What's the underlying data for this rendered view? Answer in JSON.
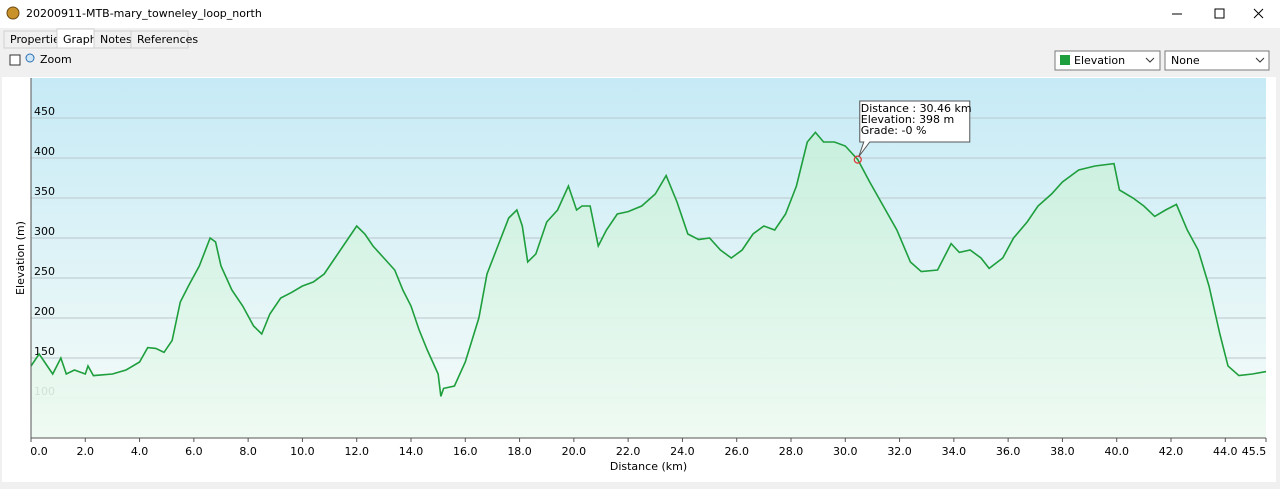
{
  "window": {
    "title": "20200911-MTB-mary_towneley_loop_north"
  },
  "tabs": [
    "Properties",
    "Graph",
    "Notes",
    "References"
  ],
  "toolbar": {
    "zoom": "Zoom",
    "second_select": "None"
  },
  "chart_data": {
    "type": "line",
    "x_label": "Distance  (km)",
    "y_label": "Elevation (m)",
    "x": [
      0,
      0.3,
      0.5,
      0.8,
      1.1,
      1.3,
      1.6,
      2.0,
      2.1,
      2.3,
      3.0,
      3.5,
      4.0,
      4.3,
      4.6,
      4.9,
      5.2,
      5.5,
      5.8,
      6.2,
      6.6,
      6.8,
      7.0,
      7.4,
      7.8,
      8.2,
      8.5,
      8.8,
      9.2,
      9.6,
      10.0,
      10.4,
      10.8,
      11.2,
      11.6,
      12.0,
      12.3,
      12.6,
      13.0,
      13.4,
      13.7,
      14.0,
      14.3,
      14.6,
      15.0,
      15.1,
      15.2,
      15.6,
      16.0,
      16.5,
      16.8,
      17.2,
      17.6,
      17.9,
      18.1,
      18.3,
      18.6,
      19.0,
      19.4,
      19.8,
      20.1,
      20.3,
      20.6,
      20.9,
      21.2,
      21.6,
      22.0,
      22.5,
      23.0,
      23.4,
      23.8,
      24.2,
      24.6,
      25.0,
      25.4,
      25.8,
      26.2,
      26.6,
      27.0,
      27.4,
      27.8,
      28.2,
      28.6,
      28.9,
      29.2,
      29.6,
      30.0,
      30.46,
      30.9,
      31.4,
      31.9,
      32.4,
      32.8,
      33.4,
      33.9,
      34.2,
      34.6,
      35.0,
      35.3,
      35.8,
      36.2,
      36.7,
      37.1,
      37.6,
      38.0,
      38.6,
      39.2,
      39.9,
      40.1,
      40.6,
      41.0,
      41.4,
      41.8,
      42.2,
      42.6,
      43.0,
      43.4,
      43.8,
      44.1,
      44.5,
      45.0,
      45.5
    ],
    "series": [
      {
        "name": "Elevation",
        "color": "#1e9e3c",
        "values": [
          140,
          155,
          145,
          130,
          150,
          130,
          135,
          130,
          140,
          128,
          130,
          135,
          145,
          163,
          162,
          157,
          172,
          220,
          240,
          265,
          300,
          295,
          265,
          235,
          215,
          190,
          180,
          205,
          225,
          232,
          240,
          245,
          255,
          275,
          295,
          315,
          305,
          290,
          275,
          260,
          235,
          215,
          185,
          160,
          130,
          102,
          112,
          115,
          145,
          200,
          255,
          290,
          325,
          335,
          315,
          270,
          280,
          320,
          335,
          365,
          335,
          340,
          340,
          290,
          310,
          330,
          333,
          340,
          355,
          378,
          345,
          305,
          298,
          300,
          285,
          275,
          285,
          305,
          315,
          310,
          330,
          365,
          420,
          432,
          420,
          420,
          415,
          398,
          370,
          340,
          310,
          270,
          258,
          260,
          293,
          282,
          285,
          275,
          262,
          275,
          300,
          320,
          340,
          355,
          370,
          385,
          390,
          393,
          360,
          350,
          340,
          327,
          335,
          342,
          310,
          285,
          240,
          180,
          140,
          128,
          130,
          133
        ]
      }
    ],
    "xlim": [
      0,
      45.5
    ],
    "ylim": [
      50,
      500
    ],
    "xticks": [
      {
        "value": 0,
        "label": "0.0"
      },
      {
        "value": 2,
        "label": "2.0"
      },
      {
        "value": 4,
        "label": "4.0"
      },
      {
        "value": 6,
        "label": "6.0"
      },
      {
        "value": 8,
        "label": "8.0"
      },
      {
        "value": 10,
        "label": "10.0"
      },
      {
        "value": 12,
        "label": "12.0"
      },
      {
        "value": 14,
        "label": "14.0"
      },
      {
        "value": 16,
        "label": "16.0"
      },
      {
        "value": 18,
        "label": "18.0"
      },
      {
        "value": 20,
        "label": "20.0"
      },
      {
        "value": 22,
        "label": "22.0"
      },
      {
        "value": 24,
        "label": "24.0"
      },
      {
        "value": 26,
        "label": "26.0"
      },
      {
        "value": 28,
        "label": "28.0"
      },
      {
        "value": 30,
        "label": "30.0"
      },
      {
        "value": 32,
        "label": "32.0"
      },
      {
        "value": 34,
        "label": "34.0"
      },
      {
        "value": 36,
        "label": "36.0"
      },
      {
        "value": 38,
        "label": "38.0"
      },
      {
        "value": 40,
        "label": "40.0"
      },
      {
        "value": 42,
        "label": "42.0"
      },
      {
        "value": 44,
        "label": "44.0"
      },
      45.5
    ],
    "yticks": [
      100,
      150,
      200,
      250,
      300,
      350,
      400,
      450
    ],
    "grid": true,
    "tooltip": {
      "x": 30.46,
      "y": 398,
      "lines": [
        "Distance : 30.46 km",
        "Elevation: 398 m",
        "Grade: -0 %"
      ]
    }
  }
}
